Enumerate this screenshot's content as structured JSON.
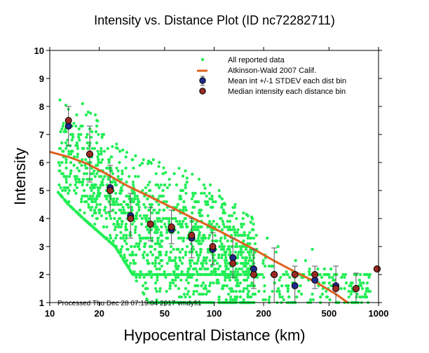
{
  "chart_data": {
    "type": "scatter",
    "title": "Intensity vs. Distance Plot (ID nc72282711)",
    "xlabel": "Hypocentral Distance (km)",
    "ylabel": "Intensity",
    "xscale": "log",
    "xlim": [
      10,
      1000
    ],
    "ylim": [
      1,
      10
    ],
    "xticks": [
      10,
      20,
      50,
      100,
      200,
      500,
      1000
    ],
    "xtick_labels": [
      "10",
      "20",
      "50",
      "100",
      "200",
      "500",
      "1000"
    ],
    "yticks": [
      1,
      2,
      3,
      4,
      5,
      6,
      7,
      8,
      9,
      10
    ],
    "ytick_labels": [
      "1",
      "2",
      "3",
      "4",
      "5",
      "6",
      "7",
      "8",
      "9",
      "10"
    ],
    "legend_position": "top-right",
    "legend": [
      {
        "label": "All reported data",
        "marker": "green-dot"
      },
      {
        "label": "Atkinson-Wald 2007 Calif.",
        "marker": "orange-line"
      },
      {
        "label": "Mean int +/-1 STDEV each dist bin",
        "marker": "blue-circle-errorbar"
      },
      {
        "label": "Median intensity each distance bin",
        "marker": "red-circle"
      }
    ],
    "colors": {
      "reported": "#22ee55",
      "model": "#e0621e",
      "mean": "#1f2a8c",
      "median": "#9a2a22",
      "errorbar": "#555555"
    },
    "footer": "Processed Thu Dec 28 07:19:04 2017 vmdyfi1",
    "model_curve": {
      "name": "Atkinson-Wald 2007 Calif.",
      "x": [
        10,
        13,
        17,
        22,
        30,
        40,
        55,
        75,
        100,
        130,
        175,
        230,
        310,
        410,
        550,
        650
      ],
      "y": [
        6.38,
        6.2,
        5.95,
        5.6,
        5.15,
        4.8,
        4.4,
        4.0,
        3.65,
        3.3,
        2.9,
        2.5,
        2.1,
        1.75,
        1.3,
        1.0
      ]
    },
    "bins": {
      "distance": [
        13,
        17.5,
        23.3,
        31,
        41,
        55,
        73,
        98,
        130,
        174,
        232,
        310,
        410,
        550,
        730,
        980
      ],
      "mean": [
        7.3,
        6.3,
        5.1,
        4.1,
        3.8,
        3.6,
        3.3,
        2.9,
        2.6,
        2.2,
        2.0,
        1.6,
        1.8,
        1.6,
        1.5,
        2.2
      ],
      "median": [
        7.5,
        6.3,
        5.0,
        4.0,
        3.8,
        3.7,
        3.4,
        3.0,
        2.4,
        2.0,
        2.0,
        2.0,
        2.0,
        1.5,
        1.5,
        2.2
      ],
      "stdev_low": [
        6.6,
        5.3,
        4.25,
        3.3,
        3.2,
        3.1,
        2.6,
        2.35,
        1.9,
        1.5,
        1.0,
        1.0,
        1.5,
        1.0,
        1.0,
        2.2
      ],
      "stdev_high": [
        8.0,
        7.3,
        5.9,
        4.9,
        4.4,
        4.3,
        4.0,
        3.5,
        3.3,
        2.9,
        2.95,
        2.3,
        2.3,
        2.3,
        2.05,
        2.2
      ]
    },
    "reported_data_envelope": {
      "description_bins_km": [
        11,
        13,
        16,
        20,
        25,
        32,
        40,
        50,
        63,
        80,
        100,
        126,
        160,
        200,
        250,
        320,
        400,
        500,
        630,
        800
      ],
      "min_intensity": [
        5.0,
        4.5,
        4.0,
        3.5,
        3.0,
        2.0,
        1.0,
        1.0,
        1.0,
        1.0,
        1.0,
        1.0,
        1.0,
        1.0,
        1.0,
        1.0,
        1.0,
        1.0,
        1.0,
        1.0
      ],
      "max_intensity": [
        8.4,
        8.2,
        8.2,
        7.6,
        6.7,
        6.3,
        6.2,
        5.9,
        5.8,
        5.5,
        5.2,
        4.6,
        4.3,
        3.6,
        3.0,
        2.5,
        3.0,
        2.6,
        2.0,
        2.0
      ],
      "approx_points": 3000
    }
  }
}
